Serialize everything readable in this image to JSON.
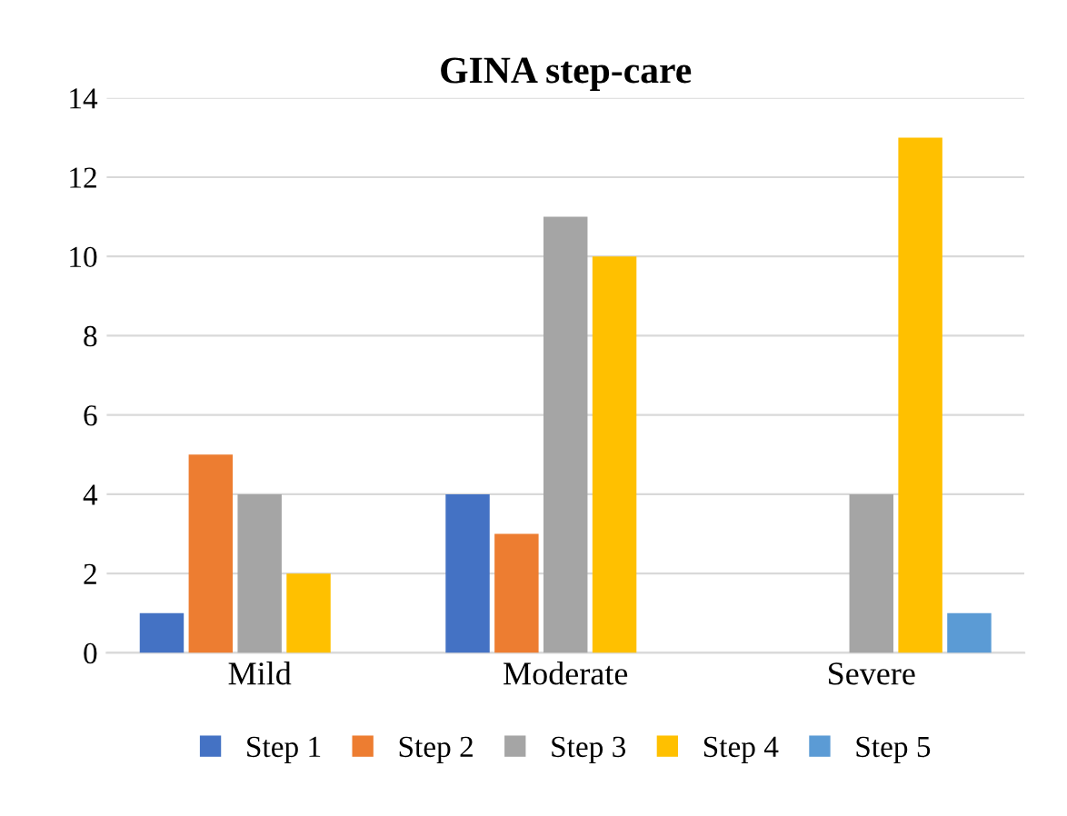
{
  "chart_data": {
    "type": "bar",
    "title": "GINA step-care",
    "categories": [
      "Mild",
      "Moderate",
      "Severe"
    ],
    "series": [
      {
        "name": "Step 1",
        "color": "#4472c4",
        "values": [
          1,
          4,
          0
        ]
      },
      {
        "name": "Step 2",
        "color": "#ed7d31",
        "values": [
          5,
          3,
          0
        ]
      },
      {
        "name": "Step 3",
        "color": "#a5a5a5",
        "values": [
          4,
          11,
          4
        ]
      },
      {
        "name": "Step 4",
        "color": "#ffc000",
        "values": [
          2,
          10,
          13
        ]
      },
      {
        "name": "Step 5",
        "color": "#5b9bd5",
        "values": [
          0,
          0,
          1
        ]
      }
    ],
    "ylim": [
      0,
      14
    ],
    "yticks": [
      0,
      2,
      4,
      6,
      8,
      10,
      12,
      14
    ],
    "grid": "y",
    "legend": "bottom"
  }
}
